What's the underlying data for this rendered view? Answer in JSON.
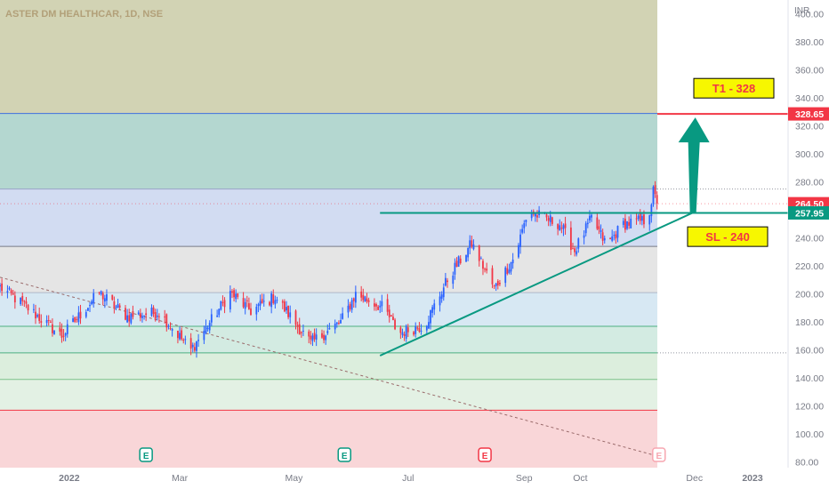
{
  "chart_data": {
    "type": "candlestick",
    "title": "ASTER DM HEALTHCAR, 1D, NSE",
    "currency": "INR",
    "ylim": [
      76,
      410
    ],
    "xlim": [
      "2021-11-25",
      "2023-01-20"
    ],
    "y_ticks": [
      "80.00",
      "100.00",
      "120.00",
      "140.00",
      "160.00",
      "180.00",
      "200.00",
      "220.00",
      "240.00",
      "260.00",
      "280.00",
      "300.00",
      "320.00",
      "340.00",
      "360.00",
      "380.00",
      "400.00"
    ],
    "x_ticks": [
      {
        "label": "2022",
        "date": "2022-01-01"
      },
      {
        "label": "Mar",
        "date": "2022-03-01"
      },
      {
        "label": "May",
        "date": "2022-05-01"
      },
      {
        "label": "Jul",
        "date": "2022-07-01"
      },
      {
        "label": "Sep",
        "date": "2022-09-01"
      },
      {
        "label": "Oct",
        "date": "2022-10-01"
      },
      {
        "label": "Dec",
        "date": "2022-12-01"
      },
      {
        "label": "2023",
        "date": "2023-01-01"
      }
    ],
    "price_key_points": [
      {
        "date": "2021-11-25",
        "price": 205
      },
      {
        "date": "2021-12-08",
        "price": 192
      },
      {
        "date": "2021-12-28",
        "price": 170
      },
      {
        "date": "2022-01-17",
        "price": 201
      },
      {
        "date": "2022-02-01",
        "price": 184
      },
      {
        "date": "2022-02-18",
        "price": 187
      },
      {
        "date": "2022-03-07",
        "price": 160
      },
      {
        "date": "2022-03-28",
        "price": 201
      },
      {
        "date": "2022-04-08",
        "price": 188
      },
      {
        "date": "2022-04-21",
        "price": 198
      },
      {
        "date": "2022-05-10",
        "price": 165
      },
      {
        "date": "2022-05-26",
        "price": 180
      },
      {
        "date": "2022-06-03",
        "price": 200
      },
      {
        "date": "2022-06-18",
        "price": 190
      },
      {
        "date": "2022-06-26",
        "price": 172
      },
      {
        "date": "2022-07-10",
        "price": 178
      },
      {
        "date": "2022-07-23",
        "price": 213
      },
      {
        "date": "2022-08-04",
        "price": 236
      },
      {
        "date": "2022-08-16",
        "price": 204
      },
      {
        "date": "2022-08-27",
        "price": 227
      },
      {
        "date": "2022-09-03",
        "price": 259
      },
      {
        "date": "2022-09-20",
        "price": 250
      },
      {
        "date": "2022-09-28",
        "price": 231
      },
      {
        "date": "2022-10-07",
        "price": 254
      },
      {
        "date": "2022-10-15",
        "price": 235
      },
      {
        "date": "2022-10-24",
        "price": 250
      },
      {
        "date": "2022-11-06",
        "price": 253
      },
      {
        "date": "2022-11-09",
        "price": 273
      },
      {
        "date": "2022-11-11",
        "price": 264.5
      }
    ],
    "last_price": "264.50",
    "fib_levels": [
      {
        "price": 329,
        "zone_color": "#b4d7d0"
      },
      {
        "price": 275,
        "zone_color": "#d2dcf2"
      },
      {
        "price": 234,
        "zone_color": "#e5e5e5"
      },
      {
        "price": 201,
        "zone_color": "#d7e8f3"
      },
      {
        "price": 177,
        "zone_color": "#d3ebe2"
      },
      {
        "price": 158,
        "zone_color": "#dceedd"
      },
      {
        "price": 139,
        "zone_color": "#e3f1e4"
      },
      {
        "price": 117,
        "zone_color": "#f9d6d8"
      }
    ],
    "zone_top_color": "#d2d3b4",
    "target": {
      "label": "T1 - 328",
      "price": "328.65",
      "value": 328.65
    },
    "stop_loss": {
      "label": "SL - 240",
      "value": 240
    },
    "resistance": {
      "price": "257.95",
      "value": 257.95,
      "from": "2022-06-16",
      "to": "2022-12-31"
    },
    "trendline": {
      "from": {
        "date": "2022-06-16",
        "price": 156
      },
      "to": {
        "date": "2022-11-30",
        "price": 258
      }
    },
    "long_trendline": {
      "from": {
        "date": "2021-11-25",
        "price": 212
      },
      "to": {
        "date": "2022-11-12",
        "price": 84
      }
    },
    "earnings_markers": [
      {
        "label": "E",
        "date": "2022-02-11",
        "color": "#089981"
      },
      {
        "label": "E",
        "date": "2022-05-28",
        "color": "#089981"
      },
      {
        "label": "E",
        "date": "2022-08-11",
        "color": "#f23645"
      },
      {
        "label": "E",
        "date": "2022-11-12",
        "color": "#f7a6b0"
      }
    ],
    "colors": {
      "up": "#2962ff",
      "down": "#f23645",
      "green": "#089981",
      "red": "#f23645",
      "box": "#f7f700"
    }
  }
}
